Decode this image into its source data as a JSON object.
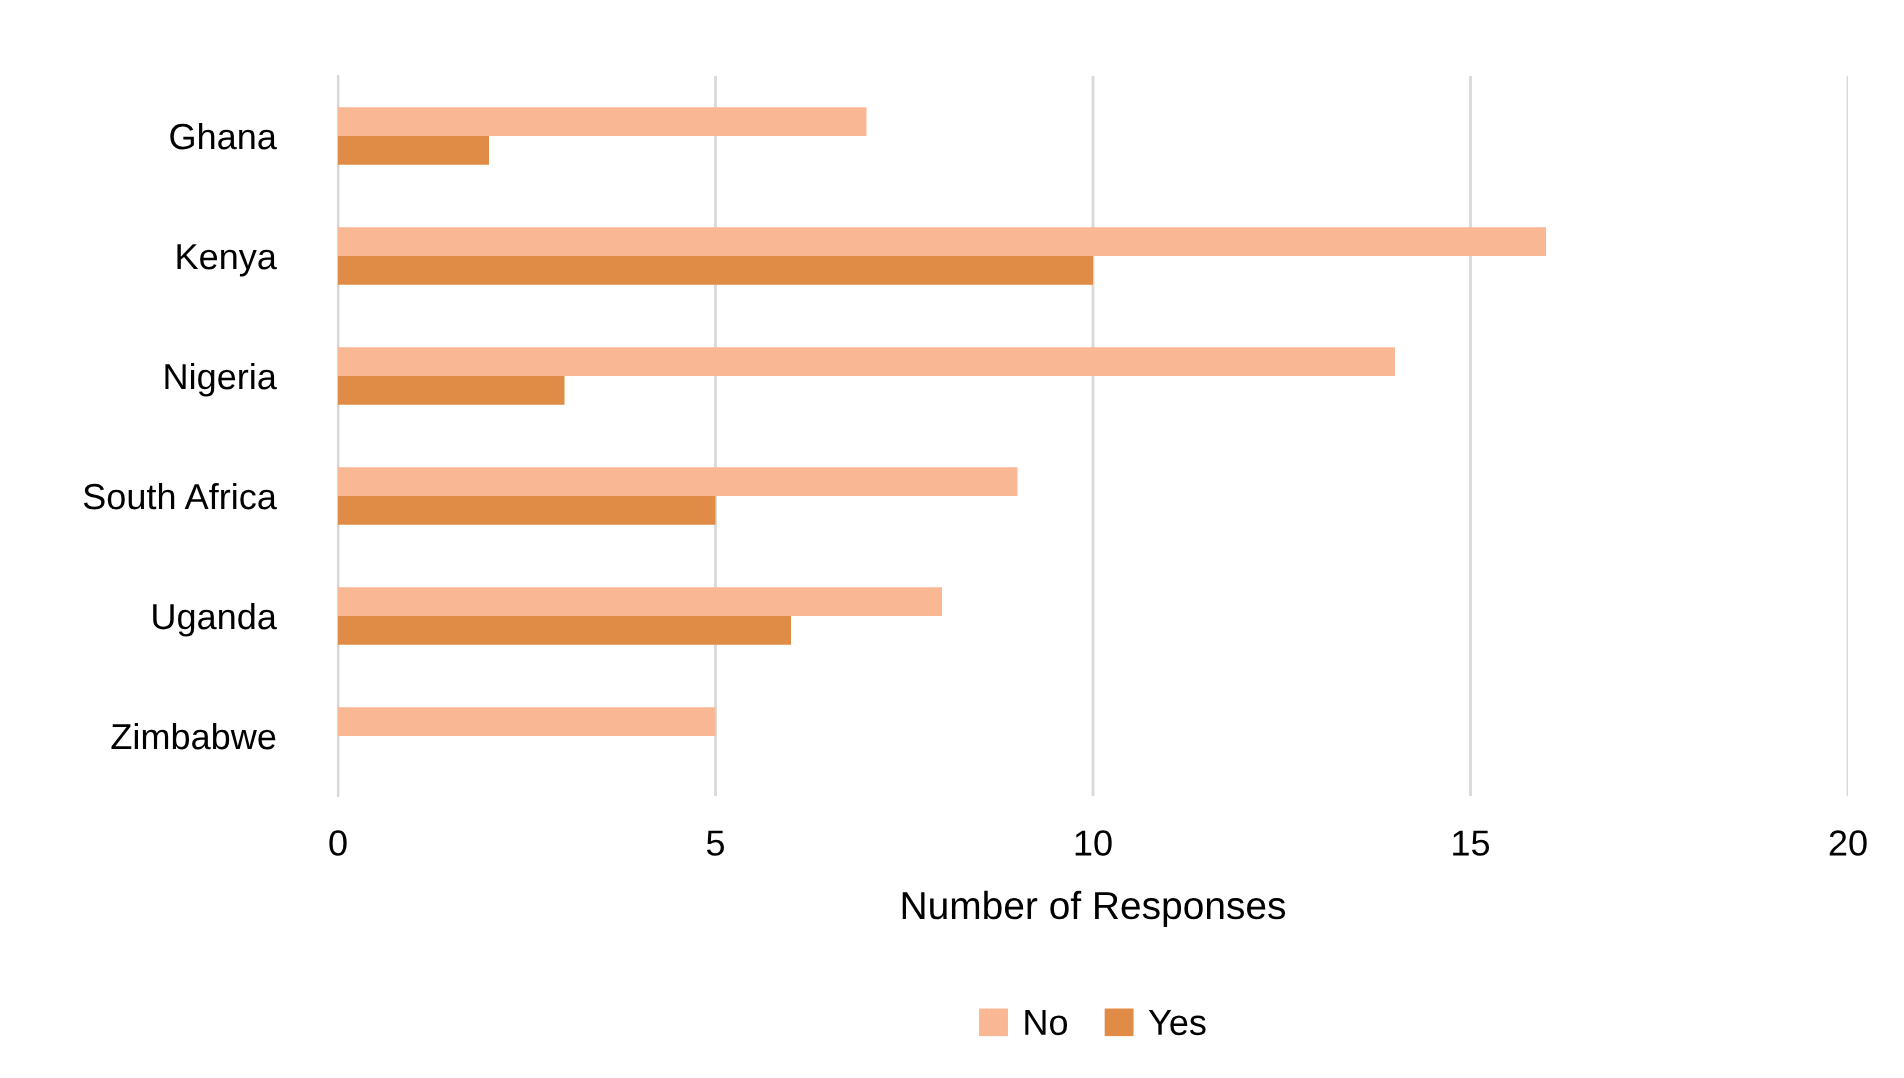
{
  "chart_data": {
    "type": "bar",
    "orientation": "horizontal",
    "xlabel": "Number of Responses",
    "categories": [
      "Ghana",
      "Kenya",
      "Nigeria",
      "South Africa",
      "Uganda",
      "Zimbabwe"
    ],
    "series": [
      {
        "name": "No",
        "color": "#f9b794",
        "values": [
          7,
          16,
          14,
          9,
          8,
          5
        ]
      },
      {
        "name": "Yes",
        "color": "#e08c47",
        "values": [
          2,
          10,
          3,
          5,
          6,
          0
        ]
      }
    ],
    "xlim": [
      0,
      20
    ],
    "xticks": [
      0,
      5,
      10,
      15,
      20
    ],
    "grid": "x",
    "legend": "bottom"
  }
}
